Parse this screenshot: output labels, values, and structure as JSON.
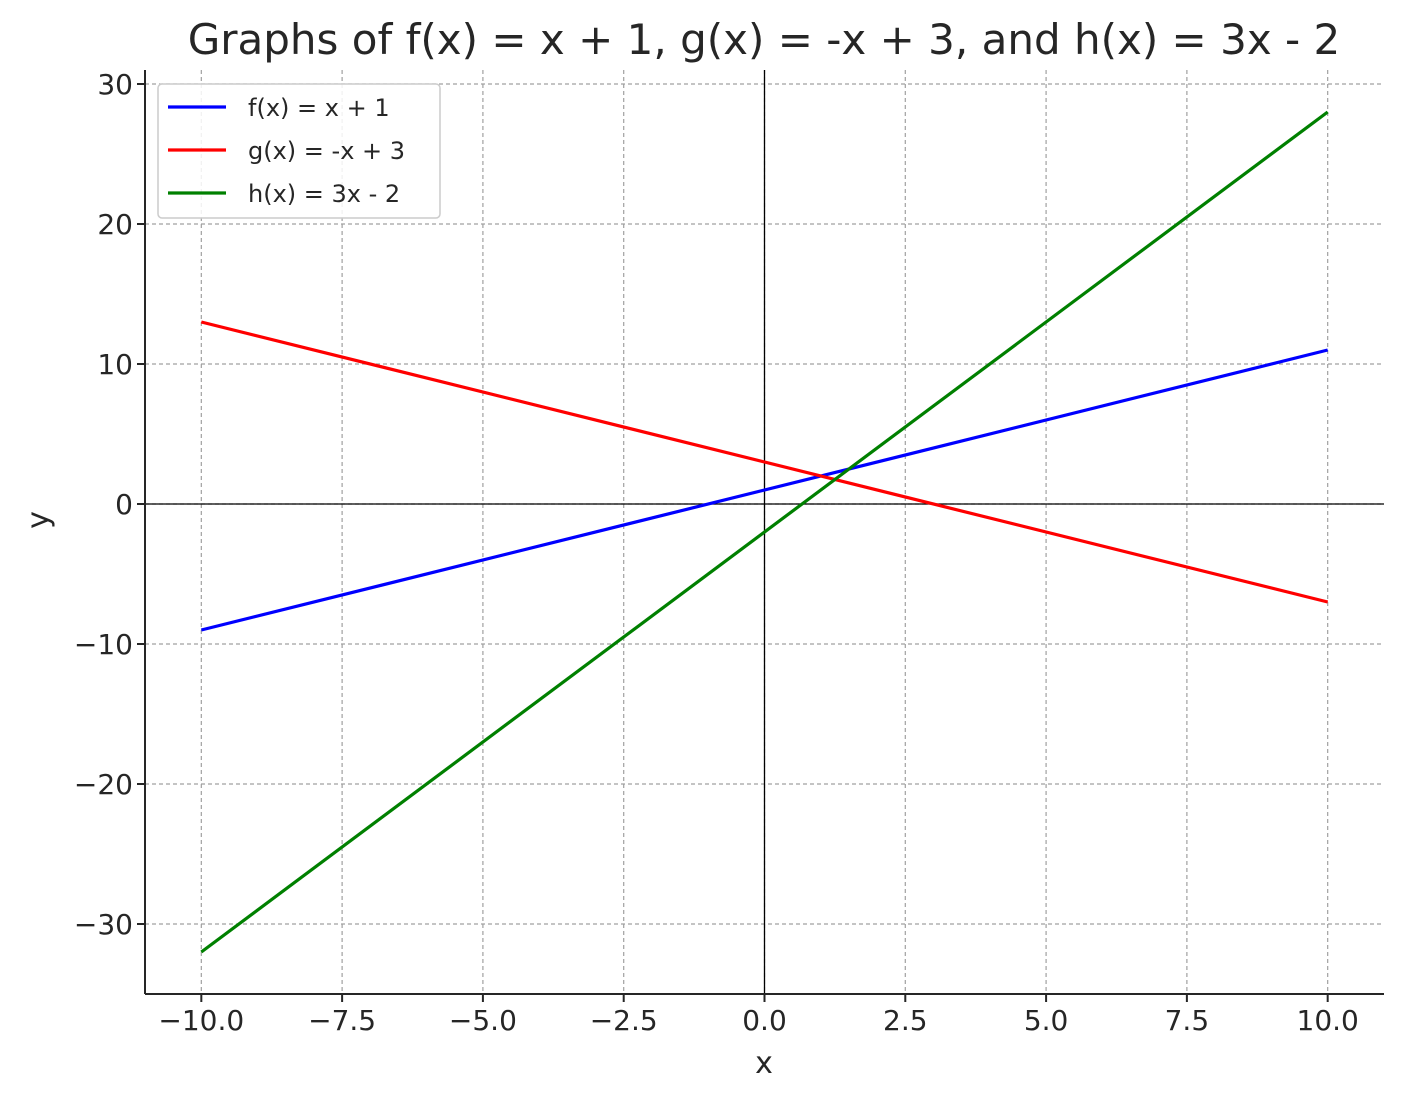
{
  "chart_data": {
    "type": "line",
    "title": "Graphs of f(x) = x + 1, g(x) = -x + 3, and h(x) = 3x - 2",
    "xlabel": "x",
    "ylabel": "y",
    "xlim": [
      -11,
      11
    ],
    "ylim": [
      -35,
      31
    ],
    "grid": true,
    "legend": "top-left",
    "xticks": [
      -10.0,
      -7.5,
      -5.0,
      -2.5,
      0.0,
      2.5,
      5.0,
      7.5,
      10.0
    ],
    "xtick_labels": [
      "−10.0",
      "−7.5",
      "−5.0",
      "−2.5",
      "0.0",
      "2.5",
      "5.0",
      "7.5",
      "10.0"
    ],
    "yticks": [
      -30,
      -20,
      -10,
      0,
      10,
      20,
      30
    ],
    "ytick_labels": [
      "−30",
      "−20",
      "−10",
      "0",
      "10",
      "20",
      "30"
    ],
    "series": [
      {
        "name": "f(x) = x + 1",
        "color": "#0000ff",
        "x": [
          -10,
          10
        ],
        "y": [
          -9,
          11
        ]
      },
      {
        "name": "g(x) = -x + 3",
        "color": "#ff0000",
        "x": [
          -10,
          10
        ],
        "y": [
          13,
          -7
        ]
      },
      {
        "name": "h(x) = 3x - 2",
        "color": "#008000",
        "x": [
          -10,
          10
        ],
        "y": [
          -32,
          28
        ]
      }
    ]
  }
}
